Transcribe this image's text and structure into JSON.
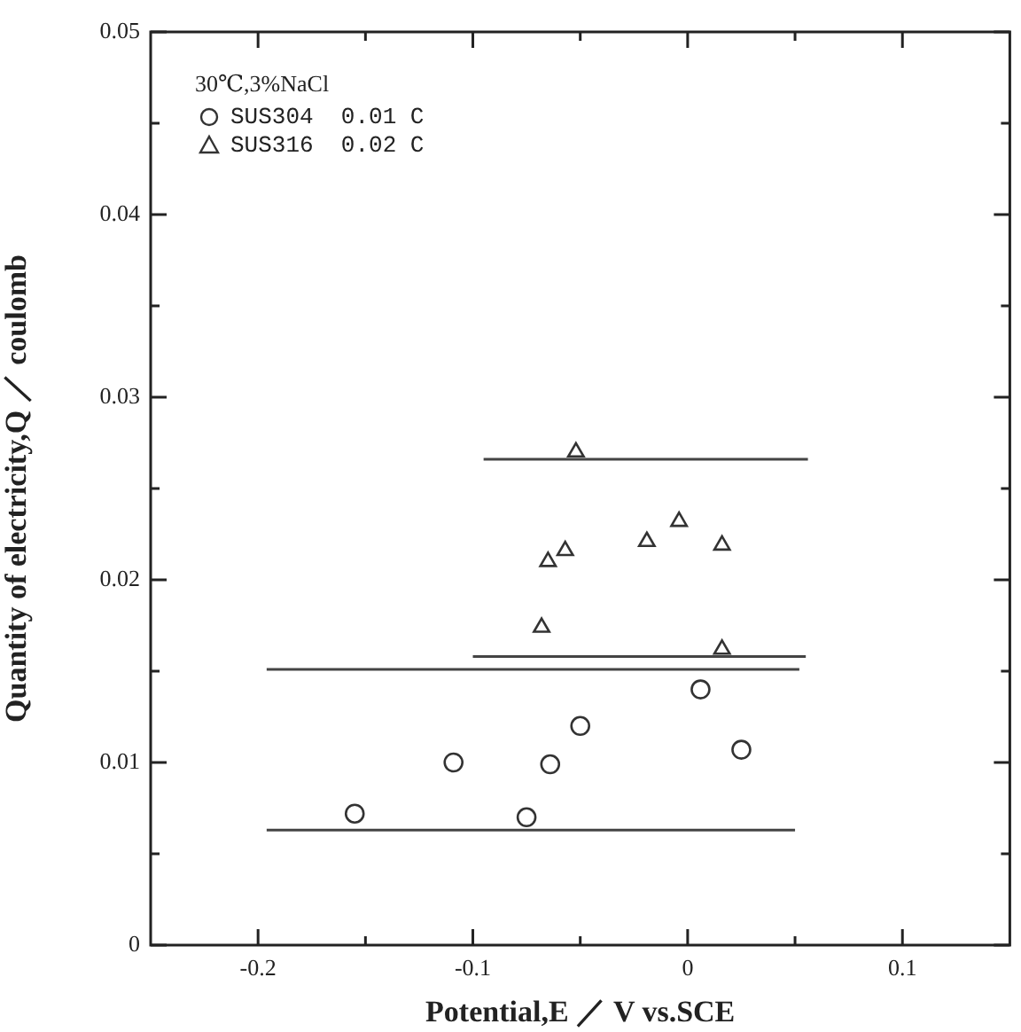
{
  "chart_data": {
    "type": "scatter",
    "xlabel": "Potential,E ／ V vs.SCE",
    "ylabel": "Quantity of electricity,Q ／ coulomb",
    "legend_title": "30℃,3%NaCl",
    "legend": "top left",
    "marker": "circle",
    "xlim": [
      -0.25,
      0.15
    ],
    "xticks": [
      -0.2,
      {
        "value": -0.15,
        "label": null
      },
      -0.1,
      {
        "value": -0.05,
        "label": null
      },
      0,
      {
        "value": 0.05,
        "label": null
      },
      0.1
    ],
    "ylim": [
      0,
      0.05
    ],
    "yticks": [
      0,
      {
        "value": 0.005,
        "label": null
      },
      0.01,
      {
        "value": 0.015,
        "label": null
      },
      0.02,
      {
        "value": 0.025,
        "label": null
      },
      0.03,
      {
        "value": 0.035,
        "label": null
      },
      0.04,
      {
        "value": 0.045,
        "label": null
      },
      0.05
    ],
    "series": [
      {
        "name": "SUS304  0.01 C",
        "color": "#333333",
        "x": [
          -0.155,
          -0.109,
          -0.075,
          -0.064,
          -0.05,
          0.006,
          0.025
        ],
        "values": [
          0.0072,
          0.01,
          0.007,
          0.0099,
          0.012,
          0.014,
          0.0107
        ]
      },
      {
        "name": "SUS316  0.02 C",
        "color": "#333333",
        "marker": "triangle",
        "x": [
          -0.052,
          -0.065,
          -0.057,
          -0.019,
          -0.004,
          0.016,
          -0.068,
          0.016
        ],
        "values": [
          0.027,
          0.021,
          0.0216,
          0.0221,
          0.0232,
          0.0219,
          0.0174,
          0.0162
        ]
      },
      {
        "type": "line",
        "color": "#444444",
        "marker": "none",
        "x": [
          -0.095,
          0.056
        ],
        "values": [
          0.0266,
          0.0266
        ]
      },
      {
        "type": "line",
        "color": "#444444",
        "marker": "none",
        "x": [
          -0.1,
          0.055
        ],
        "values": [
          0.0158,
          0.0158
        ]
      },
      {
        "type": "line",
        "color": "#444444",
        "marker": "none",
        "x": [
          -0.196,
          0.052
        ],
        "values": [
          0.0151,
          0.0151
        ]
      },
      {
        "type": "line",
        "color": "#444444",
        "marker": "none",
        "x": [
          -0.196,
          0.05
        ],
        "values": [
          0.0063,
          0.0063
        ]
      }
    ]
  }
}
